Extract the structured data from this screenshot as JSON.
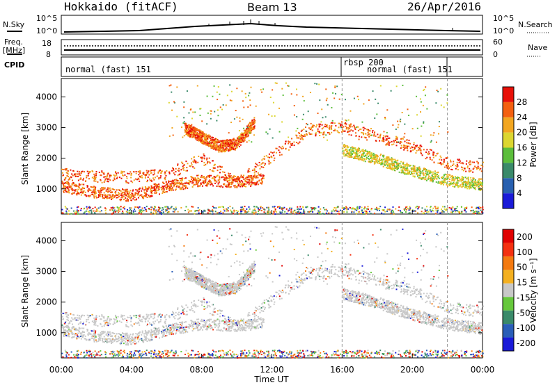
{
  "header": {
    "station": "Hokkaido (fitACF)",
    "beam": "Beam 13",
    "date": "26/Apr/2016"
  },
  "strips": {
    "nsky_label": "N.Sky",
    "nsky_ticks": [
      "10^5",
      "10^0"
    ],
    "nsearch_label": "N.Search",
    "freq_label_line1": "Freq.",
    "freq_label_line2": "[MHz]",
    "freq_ticks": [
      "18",
      "8"
    ],
    "nave_label": "Nave",
    "nave_ticks": [
      "60",
      "0"
    ],
    "cpid_label": "CPID",
    "cpid_segments": [
      {
        "label": "normal (fast) 151",
        "start_hr": 0,
        "end_hr": 16
      },
      {
        "label": "rbsp 200",
        "start_hr": 16,
        "end_hr": 22
      },
      {
        "label": "normal (fast) 151",
        "start_hr": 16,
        "end_hr": 22
      }
    ]
  },
  "chart_data": [
    {
      "type": "heatmap",
      "name": "Power",
      "xlabel": "",
      "ylabel": "Slant Range [km]",
      "xlim": [
        0,
        24
      ],
      "ylim": [
        180,
        4600
      ],
      "yticks": [
        1000,
        2000,
        3000,
        4000
      ],
      "colorbar": {
        "label": "Power [dB]",
        "ticks": [
          "4",
          "8",
          "12",
          "16",
          "20",
          "24",
          "28"
        ],
        "colors": [
          "#1a1ad8",
          "#2860b0",
          "#3a8a6a",
          "#5cbe3c",
          "#dcd630",
          "#f2a620",
          "#f46010",
          "#e81008"
        ]
      },
      "bands": [
        {
          "x": [
            0,
            2,
            4,
            6,
            8,
            10,
            12,
            14,
            16,
            18,
            20,
            22,
            24
          ],
          "y": [
            1500,
            1420,
            1400,
            1500,
            2000,
            1200,
            2100,
            2900,
            3050,
            2700,
            2400,
            1850,
            1700
          ],
          "level": "high"
        },
        {
          "x": [
            0,
            2,
            4,
            6,
            8,
            10,
            11.5
          ],
          "y": [
            1100,
            900,
            800,
            1100,
            1300,
            1250,
            1350
          ],
          "level": "high"
        },
        {
          "x": [
            7,
            8,
            9,
            10,
            11
          ],
          "y": [
            3000,
            2700,
            2400,
            2500,
            3200
          ],
          "level": "high"
        },
        {
          "x": [
            16,
            18,
            20,
            22,
            24
          ],
          "y": [
            2300,
            2000,
            1600,
            1300,
            1150
          ],
          "level": "mid"
        }
      ]
    },
    {
      "type": "heatmap",
      "name": "Velocity",
      "xlabel": "Time UT",
      "ylabel": "Slant Range [km]",
      "xlim": [
        0,
        24
      ],
      "ylim": [
        180,
        4600
      ],
      "xticks": [
        "00:00",
        "04:00",
        "08:00",
        "12:00",
        "16:00",
        "20:00",
        "00:00"
      ],
      "yticks": [
        1000,
        2000,
        3000,
        4000
      ],
      "colorbar": {
        "label": "Velocity [m s⁻¹]",
        "ticks": [
          "200",
          "100",
          "50",
          "15",
          "-15",
          "-50",
          "-100",
          "-200"
        ],
        "colors": [
          "#1a1ad8",
          "#2a5eb8",
          "#3a8a6a",
          "#66c83c",
          "#c8c8c8",
          "#f4b020",
          "#f47a10",
          "#f43010",
          "#e00000"
        ]
      }
    }
  ]
}
